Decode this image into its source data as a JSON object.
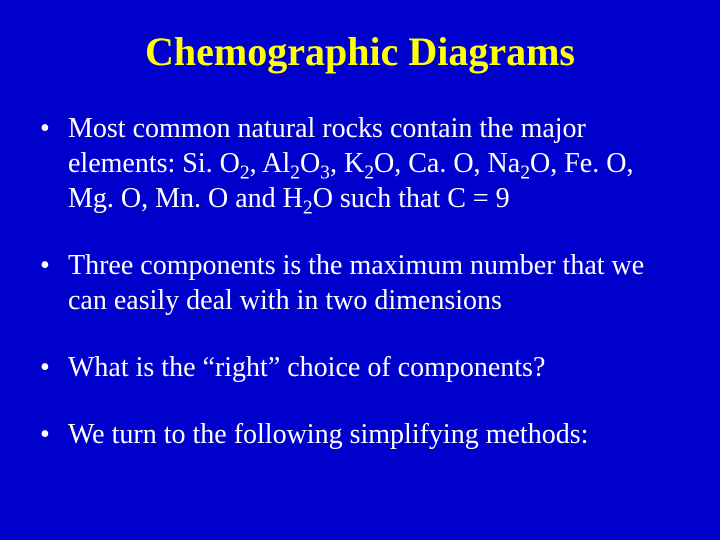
{
  "background_color": "#0000cc",
  "title_color": "#ffff00",
  "text_color": "#ffffff",
  "title_fontsize": 40,
  "body_fontsize": 28,
  "font_family": "Times New Roman, serif",
  "title": "Chemographic Diagrams",
  "bullets": [
    {
      "segments": [
        {
          "text": "Most common natural rocks contain the major elements: Si. O"
        },
        {
          "text": "2",
          "sub": true
        },
        {
          "text": ", Al"
        },
        {
          "text": "2",
          "sub": true
        },
        {
          "text": "O"
        },
        {
          "text": "3",
          "sub": true
        },
        {
          "text": ", K"
        },
        {
          "text": "2",
          "sub": true
        },
        {
          "text": "O, Ca. O, Na"
        },
        {
          "text": "2",
          "sub": true
        },
        {
          "text": "O, Fe. O, Mg. O, Mn. O and H"
        },
        {
          "text": "2",
          "sub": true
        },
        {
          "text": "O such that C = 9"
        }
      ]
    },
    {
      "segments": [
        {
          "text": "Three components is the maximum number that we can easily deal with in two dimensions"
        }
      ]
    },
    {
      "segments": [
        {
          "text": "What is the “right” choice of components?"
        }
      ]
    },
    {
      "segments": [
        {
          "text": "We turn to the following simplifying methods:"
        }
      ]
    }
  ]
}
